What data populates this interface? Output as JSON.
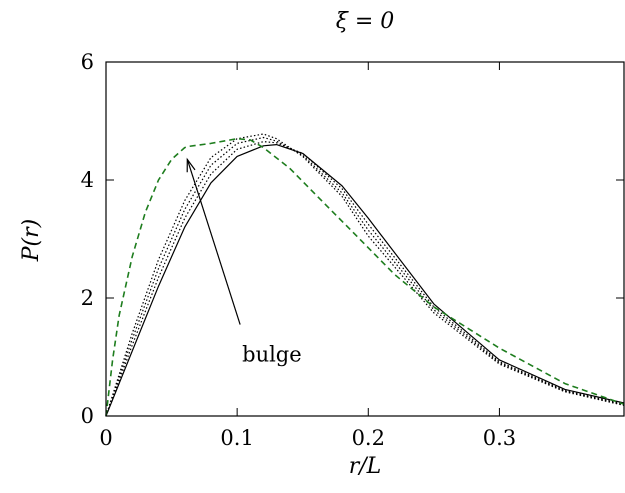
{
  "chart_data": {
    "type": "line",
    "title": "ξ = 0",
    "xlabel": "r/L",
    "ylabel": "P(r)",
    "xlim": [
      0,
      0.395
    ],
    "ylim": [
      0,
      6
    ],
    "xticks": [
      0,
      0.1,
      0.2,
      0.3
    ],
    "yticks": [
      0,
      2,
      4,
      6
    ],
    "xtick_labels": [
      "0",
      "0.1",
      "0.2",
      "0.3"
    ],
    "ytick_labels": [
      "0",
      "2",
      "4",
      "6"
    ],
    "grid": false,
    "legend": "none",
    "series": [
      {
        "style": "solid",
        "color": "#000000",
        "x": [
          0,
          0.02,
          0.04,
          0.06,
          0.08,
          0.1,
          0.12,
          0.13,
          0.15,
          0.18,
          0.2,
          0.25,
          0.3,
          0.35,
          0.395
        ],
        "y": [
          0,
          1.1,
          2.2,
          3.2,
          3.95,
          4.4,
          4.58,
          4.6,
          4.45,
          3.9,
          3.35,
          1.9,
          0.95,
          0.45,
          0.22
        ]
      },
      {
        "style": "dotted",
        "color": "#000000",
        "x": [
          0,
          0.02,
          0.04,
          0.06,
          0.08,
          0.1,
          0.12,
          0.13,
          0.15,
          0.18,
          0.2,
          0.25,
          0.3,
          0.35,
          0.395
        ],
        "y": [
          0,
          1.2,
          2.35,
          3.35,
          4.1,
          4.52,
          4.65,
          4.63,
          4.45,
          3.85,
          3.25,
          1.85,
          0.92,
          0.43,
          0.2
        ]
      },
      {
        "style": "dotted",
        "color": "#000000",
        "x": [
          0,
          0.02,
          0.04,
          0.06,
          0.08,
          0.1,
          0.12,
          0.13,
          0.15,
          0.18,
          0.2,
          0.25,
          0.3,
          0.35,
          0.395
        ],
        "y": [
          0,
          1.3,
          2.5,
          3.5,
          4.25,
          4.62,
          4.72,
          4.66,
          4.42,
          3.78,
          3.15,
          1.8,
          0.9,
          0.42,
          0.19
        ]
      },
      {
        "style": "dotted",
        "color": "#000000",
        "x": [
          0,
          0.02,
          0.04,
          0.06,
          0.08,
          0.1,
          0.12,
          0.13,
          0.15,
          0.18,
          0.2,
          0.25,
          0.3,
          0.35,
          0.395
        ],
        "y": [
          0,
          1.4,
          2.65,
          3.65,
          4.38,
          4.7,
          4.78,
          4.7,
          4.4,
          3.72,
          3.05,
          1.75,
          0.88,
          0.41,
          0.18
        ]
      },
      {
        "style": "dashed",
        "color": "#1e7d1e",
        "x": [
          0,
          0.005,
          0.01,
          0.02,
          0.03,
          0.04,
          0.05,
          0.06,
          0.063,
          0.08,
          0.1,
          0.11,
          0.12,
          0.14,
          0.16,
          0.18,
          0.2,
          0.22,
          0.25,
          0.3,
          0.35,
          0.395
        ],
        "y": [
          0,
          0.95,
          1.7,
          2.7,
          3.45,
          4.0,
          4.35,
          4.55,
          4.57,
          4.62,
          4.7,
          4.68,
          4.55,
          4.2,
          3.75,
          3.3,
          2.85,
          2.4,
          1.85,
          1.15,
          0.55,
          0.2
        ]
      }
    ],
    "annotations": [
      {
        "text": "bulge",
        "x": 0.1,
        "y": 1.55,
        "arrow_to": [
          0.062,
          4.35
        ]
      }
    ]
  }
}
